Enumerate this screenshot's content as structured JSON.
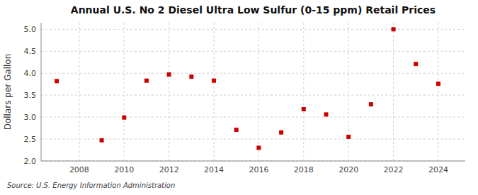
{
  "chart_data": {
    "type": "scatter",
    "title": "Annual U.S. No 2 Diesel Ultra Low Sulfur (0-15 ppm) Retail Prices",
    "ylabel": "Dollars per Gallon",
    "annotation": "Source: U.S. Energy Information Administration",
    "x": [
      2007,
      2009,
      2010,
      2011,
      2012,
      2013,
      2014,
      2015,
      2016,
      2017,
      2018,
      2019,
      2020,
      2021,
      2022,
      2023,
      2024
    ],
    "values": [
      3.82,
      2.47,
      2.99,
      3.83,
      3.97,
      3.92,
      3.83,
      2.71,
      2.3,
      2.65,
      3.18,
      3.06,
      2.55,
      3.29,
      5.0,
      4.21,
      3.76
    ],
    "color": "#cc0000",
    "marker": "square",
    "xlim": [
      2006.3,
      2025.2
    ],
    "ylim": [
      2.0,
      5.15
    ],
    "xticks": [
      2008,
      2010,
      2012,
      2014,
      2016,
      2018,
      2020,
      2022,
      2024
    ],
    "yticks": [
      {
        "value": 2.0,
        "label": "2.0"
      },
      2.5,
      {
        "value": 3.0,
        "label": "3.0"
      },
      3.5,
      {
        "value": 4.0,
        "label": "4.0"
      },
      4.5,
      {
        "value": 5.0,
        "label": "5.0"
      }
    ],
    "grid": true
  }
}
